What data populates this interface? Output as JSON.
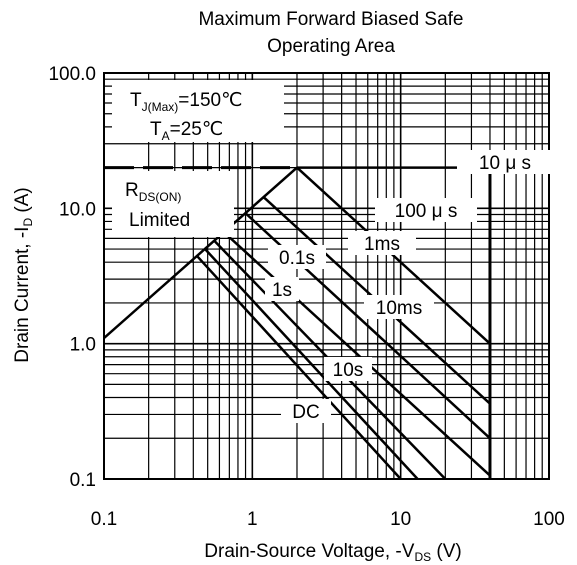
{
  "chart_data": {
    "type": "line",
    "title_lines": [
      "Maximum Forward Biased Safe",
      "Operating  Area"
    ],
    "x_axis": {
      "label_prefix": "Drain-Source Voltage, -V",
      "label_sub": "DS",
      "label_suffix": " (V)",
      "scale": "log",
      "range": [
        0.1,
        100
      ],
      "ticks": [
        {
          "value": 0.1,
          "label": "0.1"
        },
        {
          "value": 1,
          "label": "1"
        },
        {
          "value": 10,
          "label": "10"
        },
        {
          "value": 100,
          "label": "100"
        }
      ]
    },
    "y_axis": {
      "label_prefix": "Drain Current, -I",
      "label_sub": "D",
      "label_suffix": " (A)",
      "scale": "log",
      "range": [
        0.1,
        100
      ],
      "ticks": [
        {
          "value": 0.1,
          "label": "0.1"
        },
        {
          "value": 1,
          "label": "1.0"
        },
        {
          "value": 10,
          "label": "10.0"
        },
        {
          "value": 100,
          "label": "100.0"
        }
      ]
    },
    "grid": true,
    "conditions": {
      "tj_main": "T",
      "tj_sub": "J(Max)",
      "tj_value": "=150℃",
      "ta_main": "T",
      "ta_sub": "A",
      "ta_value": "=25℃"
    },
    "rds_label": {
      "main": "R",
      "sub": "DS(ON)",
      "line2": "Limited"
    },
    "current_limit": {
      "value": 20,
      "x_range": [
        0.1,
        2.0
      ]
    },
    "voltage_limit": {
      "value": 40,
      "y_range": [
        0.1,
        20
      ]
    },
    "rds_limit_line": {
      "x": [
        0.1,
        2.0
      ],
      "y": [
        1.1,
        20
      ]
    },
    "series": [
      {
        "name": "10 μ s",
        "points": [
          [
            2.0,
            20
          ],
          [
            40,
            20
          ]
        ]
      },
      {
        "name": "100 μ s",
        "points": [
          [
            2.0,
            20
          ],
          [
            40,
            1.0
          ]
        ]
      },
      {
        "name": "1ms",
        "points": [
          [
            1.2,
            12
          ],
          [
            40,
            0.36
          ]
        ]
      },
      {
        "name": "0.1s",
        "points": [
          [
            0.65,
            6.6
          ],
          [
            40,
            0.106
          ]
        ]
      },
      {
        "name": "10ms",
        "points": [
          [
            0.9,
            9.2
          ],
          [
            40,
            0.2
          ]
        ]
      },
      {
        "name": "1s",
        "points": [
          [
            0.55,
            5.8
          ],
          [
            20,
            0.1
          ]
        ]
      },
      {
        "name": "10s",
        "points": [
          [
            0.48,
            5.0
          ],
          [
            13,
            0.1
          ]
        ]
      },
      {
        "name": "DC",
        "points": [
          [
            0.42,
            4.5
          ],
          [
            10,
            0.1
          ]
        ]
      }
    ],
    "annotations": [
      {
        "text": "10 μ s",
        "series": "10 μ s"
      },
      {
        "text": "100 μ s",
        "series": "100 μ s"
      },
      {
        "text": "1ms",
        "series": "1ms"
      },
      {
        "text": "0.1s",
        "series": "0.1s"
      },
      {
        "text": "1s",
        "series": "1s"
      },
      {
        "text": "10ms",
        "series": "10ms"
      },
      {
        "text": "10s",
        "series": "10s"
      },
      {
        "text": "DC",
        "series": "DC"
      }
    ]
  }
}
